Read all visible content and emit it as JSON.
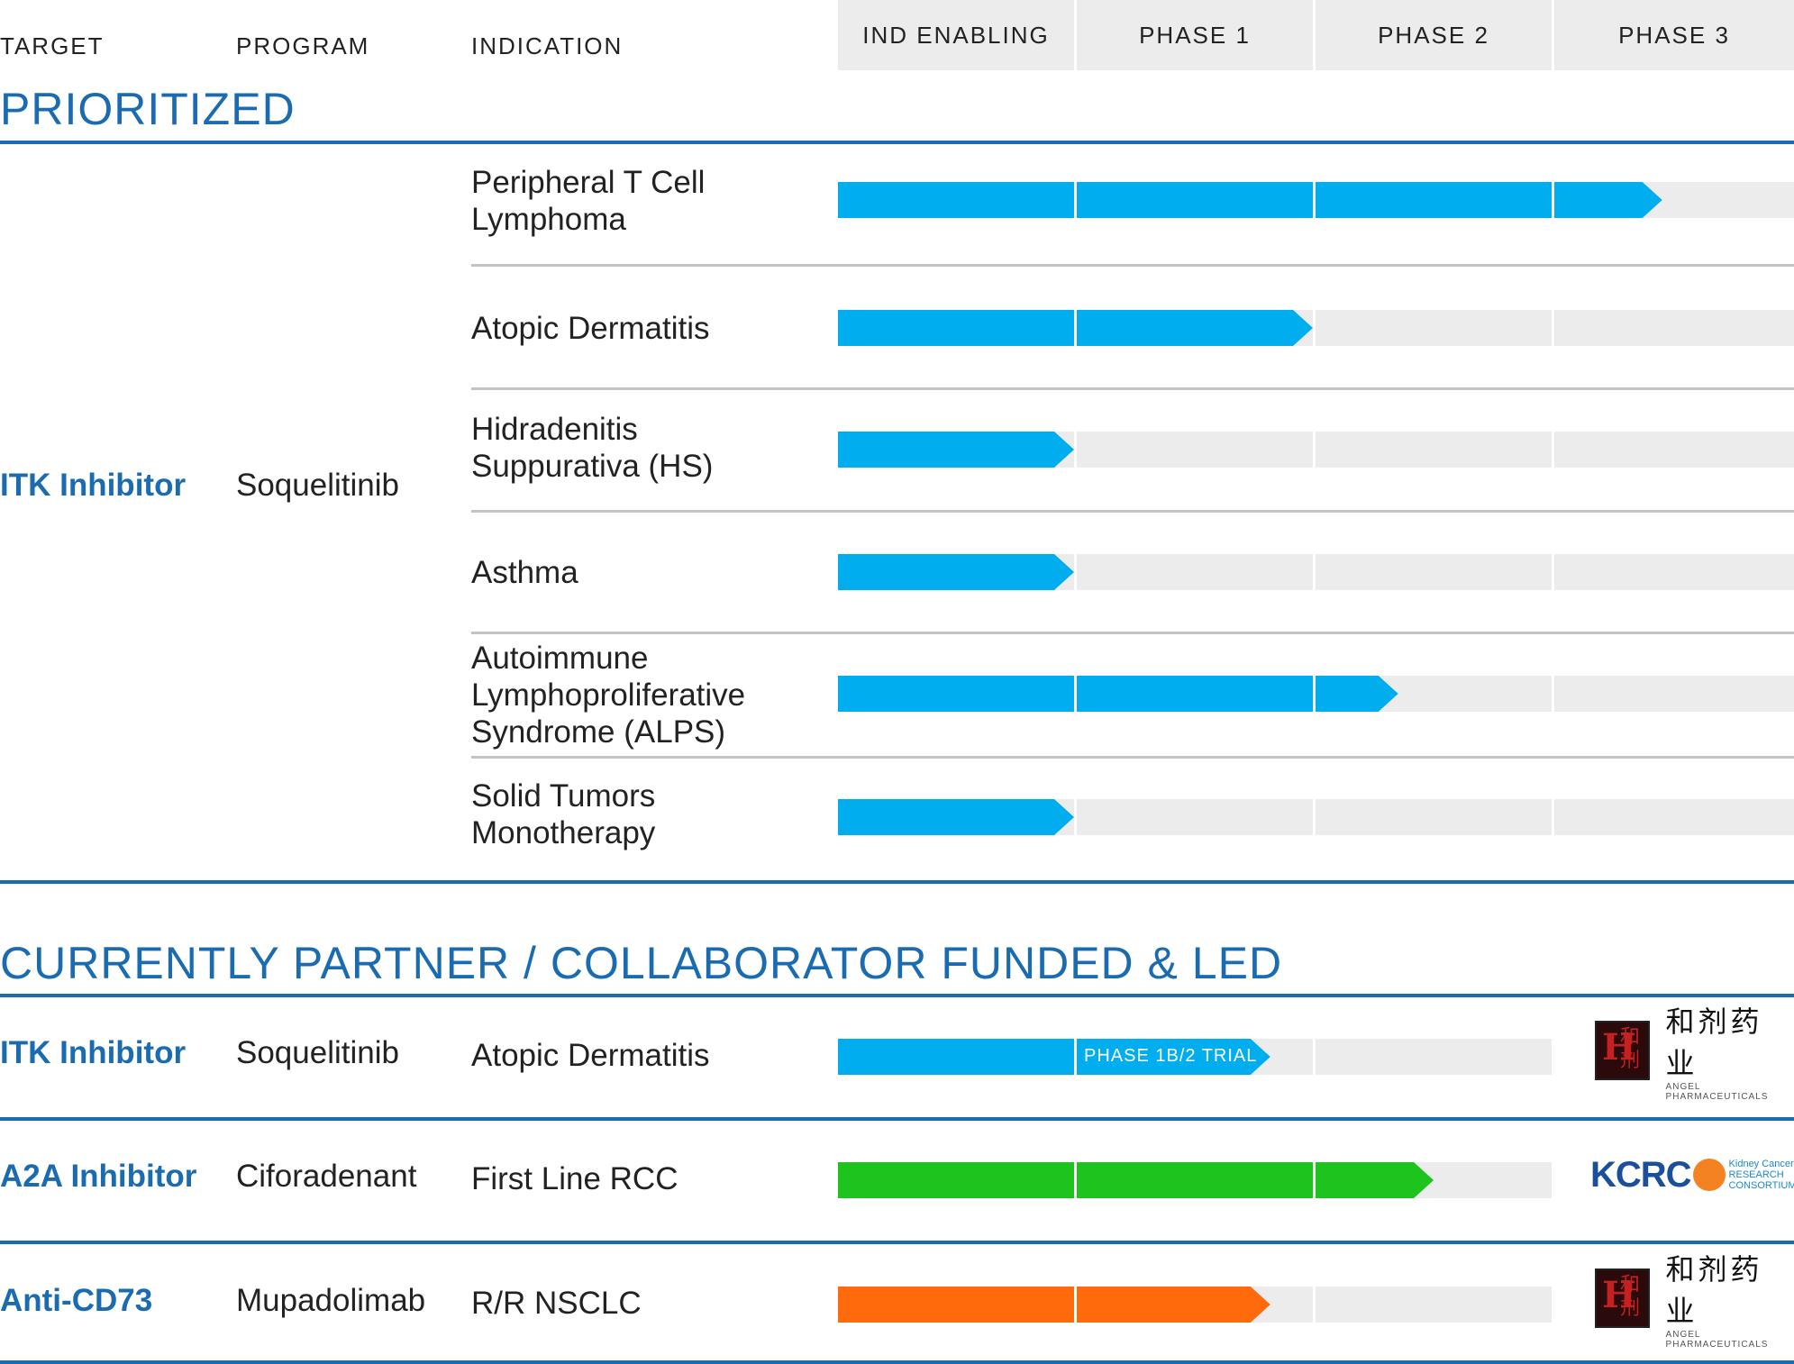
{
  "header": {
    "target": "TARGET",
    "program": "PROGRAM",
    "indication": "INDICATION",
    "phases": [
      "IND ENABLING",
      "PHASE 1",
      "PHASE 2",
      "PHASE 3"
    ]
  },
  "sections": {
    "prioritized": "PRIORITIZED",
    "partnered": "CURRENTLY PARTNER / COLLABORATOR FUNDED & LED"
  },
  "colors": {
    "blue": "#00aeef",
    "green": "#1ec31e",
    "orange": "#ff6a0d",
    "track": "#ececec",
    "heading": "#1a6bb0"
  },
  "prioritized": {
    "target": "ITK Inhibitor",
    "program": "Soquelitinib",
    "rows": [
      {
        "indication": "Peripheral T Cell Lymphoma",
        "progress": 3.45,
        "color": "blue"
      },
      {
        "indication": "Atopic Dermatitis",
        "progress": 2.0,
        "color": "blue"
      },
      {
        "indication": "Hidradenitis Suppurativa (HS)",
        "progress": 1.0,
        "color": "blue"
      },
      {
        "indication": "Asthma",
        "progress": 1.0,
        "color": "blue"
      },
      {
        "indication": "Autoimmune Lymphoproliferative Syndrome (ALPS)",
        "progress": 2.35,
        "color": "blue"
      },
      {
        "indication": "Solid Tumors Monotherapy",
        "progress": 1.0,
        "color": "blue"
      }
    ]
  },
  "partnered": [
    {
      "target": "ITK Inhibitor",
      "program": "Soquelitinib",
      "indication": "Atopic Dermatitis",
      "progress": 1.82,
      "color": "blue",
      "bar_label": "PHASE 1B/2 TRIAL",
      "partner": "angel"
    },
    {
      "target": "A2A Inhibitor",
      "program": "Ciforadenant",
      "indication": "First Line RCC",
      "progress": 2.5,
      "color": "green",
      "bar_label": "",
      "partner": "kcrc"
    },
    {
      "target": "Anti-CD73",
      "program": "Mupadolimab",
      "indication": "R/R NSCLC",
      "progress": 1.82,
      "color": "orange",
      "bar_label": "",
      "partner": "angel"
    }
  ],
  "partners": {
    "angel": {
      "seal_main": "H",
      "seal_chars": "和剂",
      "name_cn": "和剂药业",
      "name_en": "ANGEL PHARMACEUTICALS",
      "icon": "angel-logo-icon"
    },
    "kcrc": {
      "abbr": "KCRC",
      "line1": "Kidney Cancer",
      "line2": "RESEARCH",
      "line3": "CONSORTIUM",
      "icon": "kcrc-logo-icon"
    }
  }
}
